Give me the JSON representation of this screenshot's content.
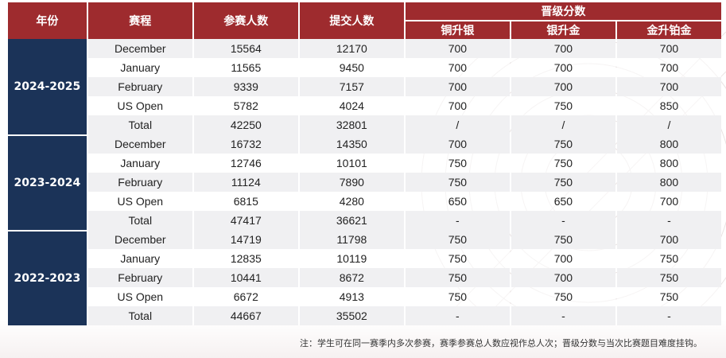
{
  "headers": {
    "year": "年份",
    "event": "赛程",
    "participants": "参赛人数",
    "submissions": "提交人数",
    "promotion": "晋级分数",
    "bronze_silver": "铜升银",
    "silver_gold": "银升金",
    "gold_platinum": "金升铂金"
  },
  "seasons": [
    {
      "year": "2024-2025",
      "rows": [
        {
          "event": "December",
          "participants": "15564",
          "submissions": "12170",
          "bs": "700",
          "sg": "700",
          "gp": "700"
        },
        {
          "event": "January",
          "participants": "11565",
          "submissions": "9450",
          "bs": "700",
          "sg": "700",
          "gp": "700"
        },
        {
          "event": "February",
          "participants": "9339",
          "submissions": "7157",
          "bs": "700",
          "sg": "700",
          "gp": "700"
        },
        {
          "event": "US Open",
          "participants": "5782",
          "submissions": "4024",
          "bs": "700",
          "sg": "750",
          "gp": "850"
        },
        {
          "event": "Total",
          "participants": "42250",
          "submissions": "32801",
          "bs": "/",
          "sg": "/",
          "gp": "/"
        }
      ]
    },
    {
      "year": "2023-2024",
      "rows": [
        {
          "event": "December",
          "participants": "16732",
          "submissions": "14350",
          "bs": "700",
          "sg": "750",
          "gp": "800"
        },
        {
          "event": "January",
          "participants": "12746",
          "submissions": "10101",
          "bs": "750",
          "sg": "750",
          "gp": "800"
        },
        {
          "event": "February",
          "participants": "11124",
          "submissions": "7890",
          "bs": "750",
          "sg": "750",
          "gp": "800"
        },
        {
          "event": "US Open",
          "participants": "6815",
          "submissions": "4280",
          "bs": "650",
          "sg": "650",
          "gp": "700"
        },
        {
          "event": "Total",
          "participants": "47417",
          "submissions": "36621",
          "bs": "-",
          "sg": "-",
          "gp": "-"
        }
      ]
    },
    {
      "year": "2022-2023",
      "rows": [
        {
          "event": "December",
          "participants": "14719",
          "submissions": "11798",
          "bs": "750",
          "sg": "750",
          "gp": "700"
        },
        {
          "event": "January",
          "participants": "12835",
          "submissions": "10119",
          "bs": "750",
          "sg": "700",
          "gp": "750"
        },
        {
          "event": "February",
          "participants": "10441",
          "submissions": "8672",
          "bs": "750",
          "sg": "700",
          "gp": "750"
        },
        {
          "event": "US Open",
          "participants": "6672",
          "submissions": "4913",
          "bs": "750",
          "sg": "750",
          "gp": "750"
        },
        {
          "event": "Total",
          "participants": "44667",
          "submissions": "35502",
          "bs": "-",
          "sg": "-",
          "gp": "-"
        }
      ]
    }
  ],
  "note": "注：学生可在同一赛季内多次参赛，赛季参赛总人数应视作总人次；晋级分数与当次比赛题目难度挂钩。",
  "colors": {
    "header": "#9e2b2e",
    "year": "#1b3358",
    "stripe": "#f0f0f2"
  }
}
